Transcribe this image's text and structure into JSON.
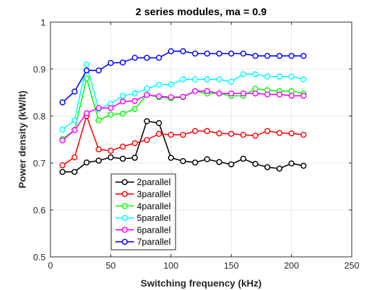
{
  "chart_data": {
    "type": "line",
    "title": "2 series modules, ma = 0.9",
    "xlabel": "Switching frequency (kHz)",
    "ylabel": "Power density (kW/lt)",
    "xlim": [
      0,
      250
    ],
    "ylim": [
      0.5,
      1
    ],
    "xticks": [
      "0",
      "50",
      "100",
      "150",
      "200",
      "250"
    ],
    "yticks": [
      "0.5",
      "0.6",
      "0.7",
      "0.8",
      "0.9",
      "1"
    ],
    "grid": true,
    "legend_position": "bottom-left",
    "x": [
      10,
      20,
      30,
      40,
      50,
      60,
      70,
      80,
      90,
      100,
      110,
      120,
      130,
      140,
      150,
      160,
      170,
      180,
      190,
      200,
      210
    ],
    "series": [
      {
        "name": "2parallel",
        "color": "#000000",
        "values": [
          0.681,
          0.681,
          0.701,
          0.705,
          0.712,
          0.709,
          0.711,
          0.789,
          0.785,
          0.711,
          0.704,
          0.701,
          0.708,
          0.702,
          0.697,
          0.709,
          0.698,
          0.691,
          0.688,
          0.699,
          0.694
        ]
      },
      {
        "name": "3parallel",
        "color": "#ff0000",
        "values": [
          0.695,
          0.712,
          0.8,
          0.729,
          0.726,
          0.735,
          0.742,
          0.749,
          0.762,
          0.76,
          0.76,
          0.768,
          0.768,
          0.763,
          0.762,
          0.76,
          0.758,
          0.768,
          0.764,
          0.763,
          0.76
        ]
      },
      {
        "name": "4parallel",
        "color": "#00ff00",
        "values": [
          0.751,
          0.77,
          0.88,
          0.791,
          0.803,
          0.805,
          0.815,
          0.845,
          0.84,
          0.838,
          0.84,
          0.853,
          0.848,
          0.848,
          0.843,
          0.843,
          0.858,
          0.855,
          0.853,
          0.853,
          0.848
        ]
      },
      {
        "name": "5parallel",
        "color": "#00ffff",
        "values": [
          0.771,
          0.791,
          0.91,
          0.815,
          0.826,
          0.843,
          0.848,
          0.858,
          0.867,
          0.867,
          0.878,
          0.878,
          0.878,
          0.878,
          0.873,
          0.889,
          0.889,
          0.884,
          0.884,
          0.884,
          0.878
        ]
      },
      {
        "name": "6parallel",
        "color": "#ff00ff",
        "values": [
          0.748,
          0.77,
          0.806,
          0.817,
          0.817,
          0.831,
          0.832,
          0.845,
          0.842,
          0.84,
          0.841,
          0.853,
          0.853,
          0.848,
          0.848,
          0.848,
          0.848,
          0.846,
          0.846,
          0.843,
          0.843
        ]
      },
      {
        "name": "7parallel",
        "color": "#0000ff",
        "values": [
          0.829,
          0.852,
          0.897,
          0.897,
          0.913,
          0.914,
          0.924,
          0.924,
          0.924,
          0.938,
          0.938,
          0.933,
          0.933,
          0.933,
          0.933,
          0.933,
          0.928,
          0.928,
          0.928,
          0.928,
          0.928
        ]
      }
    ]
  }
}
